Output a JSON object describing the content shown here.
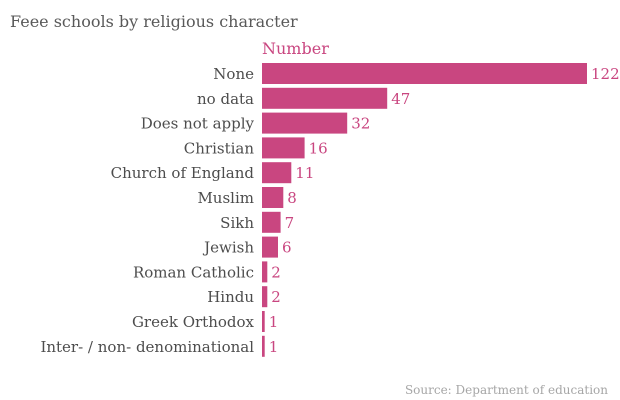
{
  "chart_data": {
    "type": "bar",
    "orientation": "horizontal",
    "title": "Feee schools by religious character",
    "series_name": "Number",
    "categories": [
      "None",
      "no data",
      "Does not apply",
      "Christian",
      "Church of England",
      "Muslim",
      "Sikh",
      "Jewish",
      "Roman Catholic",
      "Hindu",
      "Greek Orthodox",
      "Inter- / non- denominational"
    ],
    "values": [
      122,
      47,
      32,
      16,
      11,
      8,
      7,
      6,
      2,
      2,
      1,
      1
    ],
    "source": "Source: Department of education",
    "xlim": [
      0,
      122
    ],
    "grid": false,
    "legend": "none",
    "color": "#c94680"
  }
}
